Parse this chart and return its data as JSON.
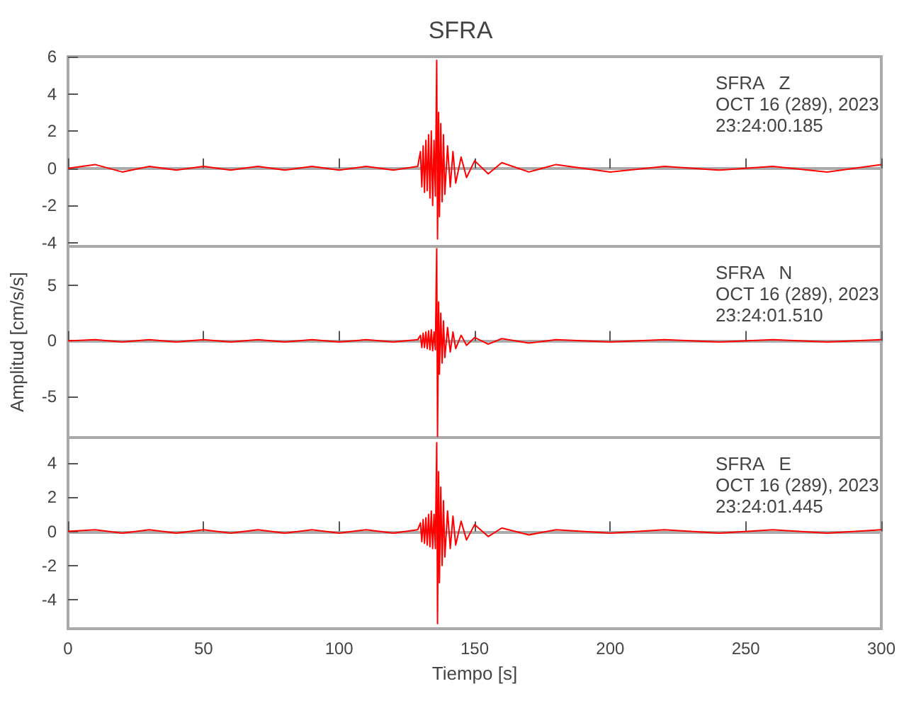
{
  "chart_data": [
    {
      "type": "line",
      "title": "SFRA",
      "marker": "none",
      "tick_labels": "y",
      "annotations": [
        "SFRA   Z",
        "OCT 16 (289), 2023",
        "23:24:00.185"
      ],
      "x": [
        0,
        10,
        20,
        30,
        40,
        50,
        60,
        70,
        80,
        90,
        100,
        110,
        120,
        129,
        130,
        130.5,
        131,
        131.5,
        132,
        132.5,
        133,
        133.5,
        134,
        134.5,
        135,
        135.5,
        136,
        136.3,
        136.7,
        137,
        137.5,
        138,
        138.5,
        139,
        140,
        141,
        142,
        143,
        145,
        147,
        150,
        155,
        160,
        170,
        180,
        200,
        220,
        240,
        260,
        280,
        300
      ],
      "xlim": [
        0,
        300
      ],
      "xticks": [
        0,
        50,
        100,
        150,
        200,
        250,
        300
      ],
      "ylim": [
        -4.2,
        6
      ],
      "yticks": [
        -4,
        -2,
        0,
        2,
        4,
        6
      ],
      "series": [
        {
          "color": "#ff0000",
          "values": [
            0,
            0.2,
            -0.2,
            0.1,
            -0.1,
            0.1,
            -0.1,
            0.1,
            -0.1,
            0.1,
            -0.1,
            0.1,
            -0.1,
            0.1,
            0.9,
            -1.0,
            1.2,
            -1.3,
            1.5,
            -1.2,
            1.8,
            -1.6,
            2.0,
            -2.0,
            1.5,
            -1.5,
            5.8,
            -3.8,
            3.0,
            -2.6,
            2.4,
            -1.8,
            1.8,
            -1.4,
            1.2,
            -1.0,
            0.9,
            -0.8,
            0.6,
            -0.5,
            0.4,
            -0.3,
            0.3,
            -0.2,
            0.2,
            -0.2,
            0.1,
            -0.1,
            0.1,
            -0.2,
            0.2
          ]
        }
      ]
    },
    {
      "type": "line",
      "ylabel": "Amplitud [cm/s/s]",
      "marker": "none",
      "tick_labels": "y",
      "annotations": [
        "SFRA   N",
        "OCT 16 (289), 2023",
        "23:24:01.510"
      ],
      "x": [
        0,
        10,
        20,
        30,
        40,
        50,
        60,
        70,
        80,
        90,
        100,
        110,
        120,
        129,
        130,
        130.5,
        131,
        131.5,
        132,
        132.5,
        133,
        133.5,
        134,
        134.5,
        135,
        135.5,
        136,
        136.3,
        136.7,
        137,
        137.5,
        138,
        138.5,
        139,
        140,
        141,
        142,
        143,
        145,
        147,
        150,
        155,
        160,
        170,
        180,
        200,
        220,
        240,
        260,
        280,
        300
      ],
      "xlim": [
        0,
        300
      ],
      "xticks": [
        0,
        50,
        100,
        150,
        200,
        250,
        300
      ],
      "ylim": [
        -8.7,
        8.5
      ],
      "yticks": [
        -5,
        0,
        5
      ],
      "series": [
        {
          "color": "#ff0000",
          "values": [
            0,
            0.1,
            -0.1,
            0.1,
            -0.1,
            0.1,
            -0.1,
            0.1,
            -0.1,
            0.1,
            -0.1,
            0.1,
            -0.1,
            0.1,
            0.5,
            -0.6,
            0.7,
            -0.6,
            0.8,
            -0.7,
            0.9,
            -0.8,
            1.0,
            -0.9,
            0.8,
            -0.8,
            8.3,
            -8.6,
            3.5,
            -3.0,
            2.5,
            -2.0,
            1.8,
            -1.5,
            1.2,
            -1.0,
            0.8,
            -0.7,
            0.5,
            -0.4,
            0.3,
            -0.3,
            0.2,
            -0.2,
            0.1,
            -0.1,
            0.1,
            -0.1,
            0.1,
            -0.1,
            0.1
          ]
        }
      ]
    },
    {
      "type": "line",
      "xlabel": "Tiempo [s]",
      "marker": "none",
      "annotations": [
        "SFRA   E",
        "OCT 16 (289), 2023",
        "23:24:01.445"
      ],
      "x": [
        0,
        10,
        20,
        30,
        40,
        50,
        60,
        70,
        80,
        90,
        100,
        110,
        120,
        129,
        130,
        130.5,
        131,
        131.5,
        132,
        132.5,
        133,
        133.5,
        134,
        134.5,
        135,
        135.5,
        136,
        136.3,
        136.7,
        137,
        137.5,
        138,
        138.5,
        139,
        140,
        141,
        142,
        143,
        145,
        147,
        150,
        155,
        160,
        170,
        180,
        200,
        220,
        240,
        260,
        280,
        300
      ],
      "xlim": [
        0,
        300
      ],
      "xticks": [
        0,
        50,
        100,
        150,
        200,
        250,
        300
      ],
      "ylim": [
        -5.7,
        5.5
      ],
      "yticks": [
        -4,
        -2,
        0,
        2,
        4
      ],
      "series": [
        {
          "color": "#ff0000",
          "values": [
            0,
            0.1,
            -0.1,
            0.1,
            -0.1,
            0.1,
            -0.1,
            0.1,
            -0.1,
            0.1,
            -0.1,
            0.1,
            -0.1,
            0.1,
            0.5,
            -0.6,
            0.7,
            -0.7,
            0.8,
            -0.8,
            1.0,
            -0.9,
            1.2,
            -1.0,
            1.0,
            -1.0,
            5.2,
            -5.4,
            3.5,
            -3.0,
            2.6,
            -2.0,
            1.8,
            -1.5,
            1.2,
            -1.0,
            0.9,
            -0.8,
            0.6,
            -0.5,
            0.4,
            -0.3,
            0.2,
            -0.2,
            0.1,
            -0.1,
            0.1,
            -0.1,
            0.1,
            -0.1,
            0.1
          ]
        }
      ]
    }
  ]
}
